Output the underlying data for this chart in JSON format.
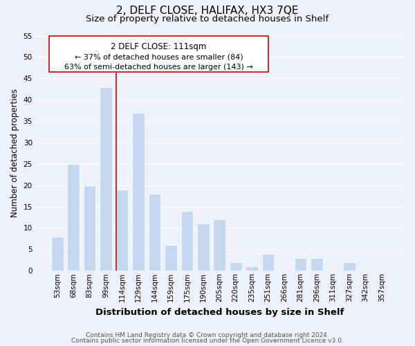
{
  "title": "2, DELF CLOSE, HALIFAX, HX3 7QE",
  "subtitle": "Size of property relative to detached houses in Shelf",
  "xlabel": "Distribution of detached houses by size in Shelf",
  "ylabel": "Number of detached properties",
  "categories": [
    "53sqm",
    "68sqm",
    "83sqm",
    "99sqm",
    "114sqm",
    "129sqm",
    "144sqm",
    "159sqm",
    "175sqm",
    "190sqm",
    "205sqm",
    "220sqm",
    "235sqm",
    "251sqm",
    "266sqm",
    "281sqm",
    "296sqm",
    "311sqm",
    "327sqm",
    "342sqm",
    "357sqm"
  ],
  "values": [
    8,
    25,
    20,
    43,
    19,
    37,
    18,
    6,
    14,
    11,
    12,
    2,
    1,
    4,
    0,
    3,
    3,
    0,
    2,
    0,
    0
  ],
  "bar_color": "#c5d8f0",
  "reference_line_color": "#cc0000",
  "reference_line_index": 4,
  "ylim": [
    0,
    55
  ],
  "yticks": [
    0,
    5,
    10,
    15,
    20,
    25,
    30,
    35,
    40,
    45,
    50,
    55
  ],
  "annotation_title": "2 DELF CLOSE: 111sqm",
  "annotation_line1": "← 37% of detached houses are smaller (84)",
  "annotation_line2": "63% of semi-detached houses are larger (143) →",
  "annotation_box_color": "#ffffff",
  "annotation_box_edge": "#cc0000",
  "footer1": "Contains HM Land Registry data © Crown copyright and database right 2024.",
  "footer2": "Contains public sector information licensed under the Open Government Licence v3.0.",
  "background_color": "#edf2fa",
  "grid_color": "#ffffff",
  "title_fontsize": 11,
  "subtitle_fontsize": 9.5,
  "xlabel_fontsize": 9.5,
  "ylabel_fontsize": 8.5,
  "tick_fontsize": 7.5,
  "annotation_title_fontsize": 8.5,
  "annotation_text_fontsize": 8,
  "footer_fontsize": 6.5
}
